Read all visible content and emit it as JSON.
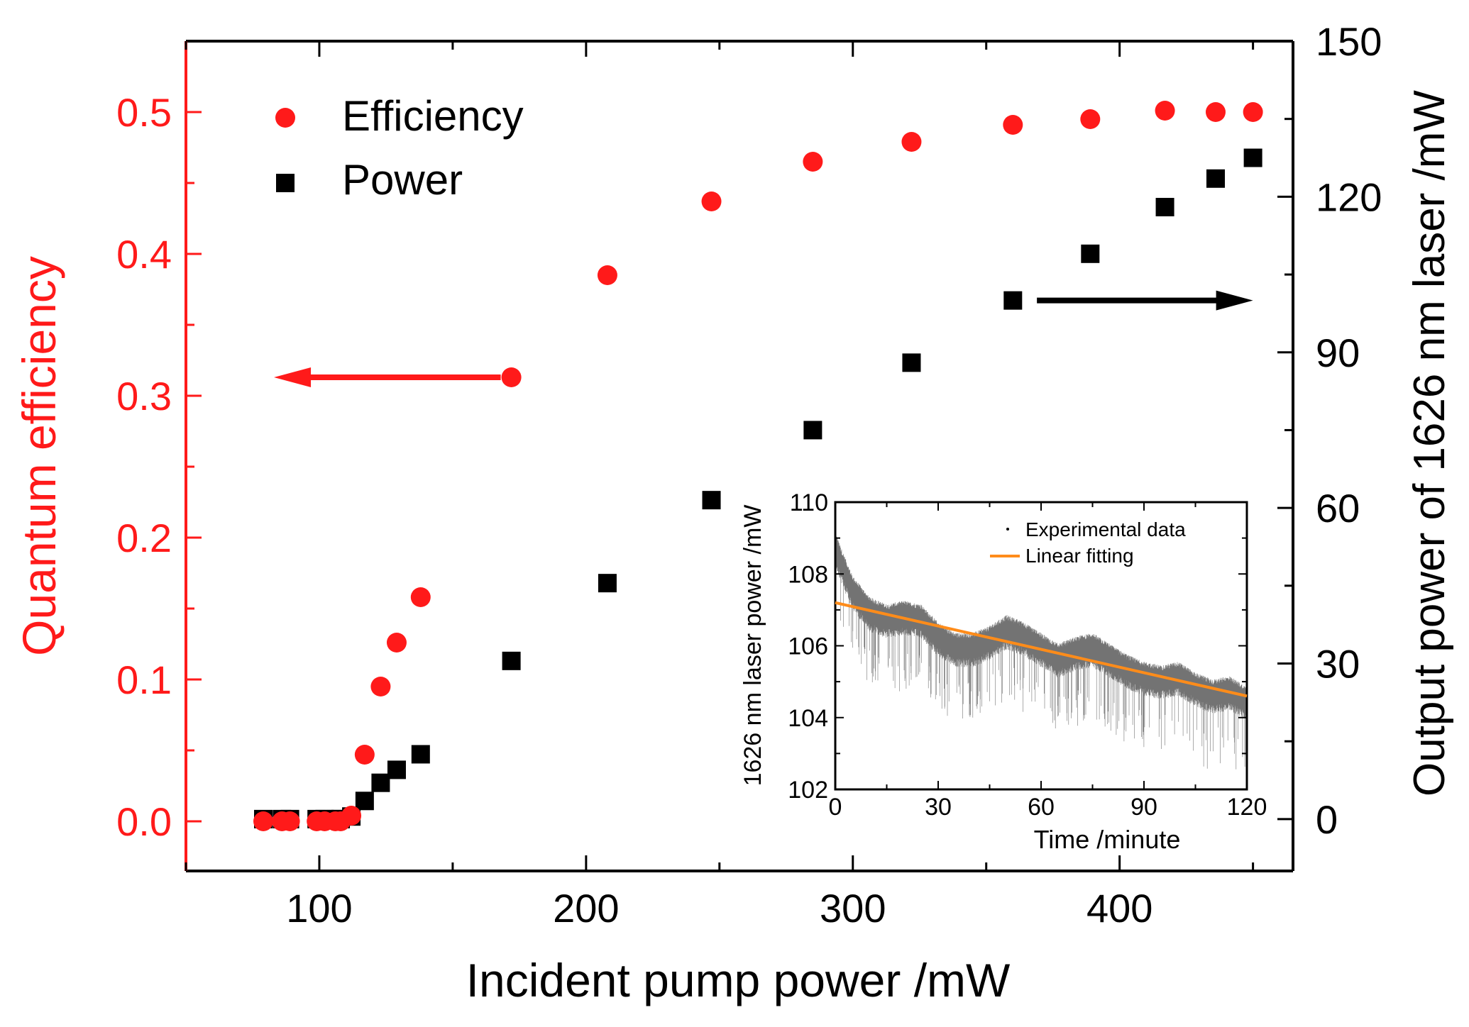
{
  "colors": {
    "efficiency": "#ff1a1a",
    "power": "#000000",
    "fit": "#ff8c1a",
    "axis_black": "#000000"
  },
  "chart_data": [
    {
      "type": "scatter",
      "id": "main",
      "xlabel": "Incident pump power /mW",
      "ylabel_left": "Quantum efficiency",
      "ylabel_right": "Output power of 1626 nm laser /mW",
      "xlim": [
        50,
        465
      ],
      "ylim_left": [
        -0.035,
        0.55
      ],
      "ylim_right": [
        -10,
        150
      ],
      "xticks": [
        100,
        200,
        300,
        400
      ],
      "yticks_left": [
        0.0,
        0.1,
        0.2,
        0.3,
        0.4,
        0.5
      ],
      "yticks_left_labels": [
        "0.0",
        "0.1",
        "0.2",
        "0.3",
        "0.4",
        "0.5"
      ],
      "yticks_right": [
        0,
        30,
        60,
        90,
        120,
        150
      ],
      "yticks_right_labels": [
        "0",
        "30",
        "60",
        "90",
        "120",
        "150"
      ],
      "legend": {
        "position": "top-left",
        "entries": [
          "Efficiency",
          "Power"
        ]
      },
      "annotations": [
        {
          "type": "arrow",
          "direction": "left",
          "series": "Efficiency",
          "from": [
            168,
            0.313
          ],
          "to": [
            83,
            0.313
          ]
        },
        {
          "type": "arrow",
          "direction": "right",
          "series": "Power",
          "from": [
            369,
            100
          ],
          "to": [
            450,
            100
          ]
        }
      ],
      "series": [
        {
          "name": "Efficiency",
          "axis": "left",
          "marker": "circle",
          "x": [
            79,
            86,
            89,
            99,
            102,
            106,
            108,
            112,
            117,
            123,
            129,
            138,
            172,
            208,
            247,
            285,
            322,
            360,
            389,
            417,
            436,
            450
          ],
          "y": [
            0.0,
            0.0,
            0.0,
            0.0,
            0.0,
            0.0,
            0.0,
            0.004,
            0.047,
            0.095,
            0.126,
            0.158,
            0.313,
            0.385,
            0.437,
            0.465,
            0.479,
            0.491,
            0.495,
            0.501,
            0.5,
            0.5
          ]
        },
        {
          "name": "Power",
          "axis": "right",
          "marker": "square",
          "x": [
            79,
            86,
            89,
            99,
            102,
            106,
            108,
            112,
            117,
            123,
            129,
            138,
            172,
            208,
            247,
            285,
            322,
            360,
            389,
            417,
            436,
            450
          ],
          "y": [
            0.0,
            0.0,
            0.0,
            0.0,
            0.0,
            0.0,
            0.0,
            0.5,
            3.5,
            7.0,
            9.5,
            12.5,
            30.5,
            45.5,
            61.5,
            75.0,
            88.0,
            100.0,
            109.0,
            118.0,
            123.5,
            127.5
          ]
        }
      ]
    },
    {
      "type": "scatter",
      "id": "inset",
      "xlabel": "Time /minute",
      "ylabel": "1626 nm laser power /mW",
      "xlim": [
        0,
        120
      ],
      "ylim": [
        102,
        110
      ],
      "xticks": [
        0,
        30,
        60,
        90,
        120
      ],
      "xticks_labels": [
        "0",
        "30",
        "60",
        "90",
        "120"
      ],
      "yticks": [
        102,
        104,
        106,
        108,
        110
      ],
      "yticks_labels": [
        "102",
        "104",
        "106",
        "108",
        "110"
      ],
      "legend": {
        "position": "top-right",
        "entries": [
          "Experimental data",
          "Linear fitting"
        ]
      },
      "fit": {
        "name": "Linear fitting",
        "x": [
          0,
          120
        ],
        "y": [
          107.2,
          104.6
        ]
      },
      "experimental_trend": {
        "name": "Experimental data",
        "x": [
          0,
          2,
          5,
          10,
          15,
          20,
          25,
          30,
          35,
          40,
          45,
          50,
          55,
          60,
          65,
          70,
          75,
          80,
          85,
          90,
          95,
          100,
          105,
          110,
          115,
          120
        ],
        "y": [
          108.8,
          108.3,
          107.6,
          107.0,
          106.8,
          106.9,
          106.8,
          106.3,
          106.0,
          106.0,
          106.2,
          106.5,
          106.3,
          106.0,
          105.7,
          105.9,
          106.0,
          105.7,
          105.4,
          105.2,
          105.1,
          105.2,
          104.9,
          104.7,
          104.8,
          104.5
        ]
      }
    }
  ]
}
